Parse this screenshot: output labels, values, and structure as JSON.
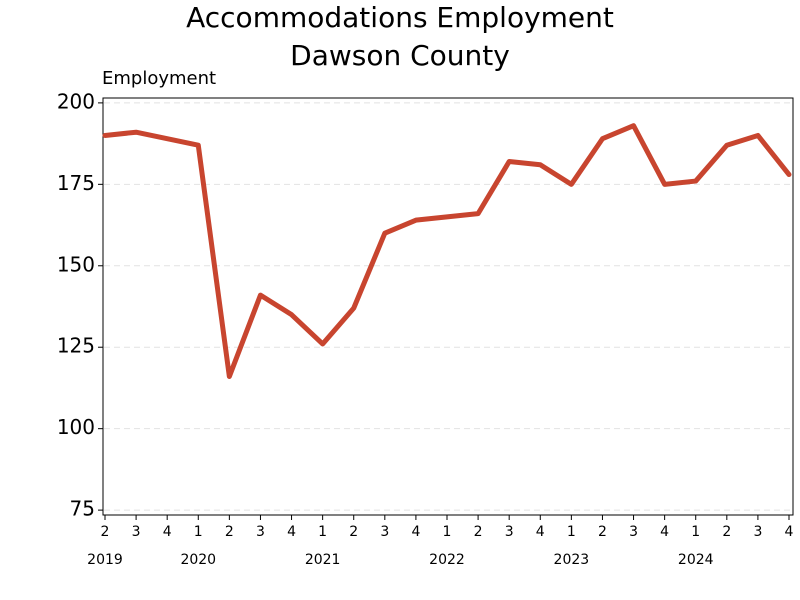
{
  "chart_data": {
    "type": "line",
    "title": "Accommodations Employment",
    "subtitle": "Dawson County",
    "y_label": "Employment",
    "categories": [
      "2",
      "3",
      "4",
      "1",
      "2",
      "3",
      "4",
      "1",
      "2",
      "3",
      "4",
      "1",
      "2",
      "3",
      "4",
      "1",
      "2",
      "3",
      "4",
      "1",
      "2",
      "3",
      "4"
    ],
    "year_categories": [
      "2019",
      null,
      null,
      "2020",
      null,
      null,
      null,
      "2021",
      null,
      null,
      null,
      "2022",
      null,
      null,
      null,
      "2023",
      null,
      null,
      null,
      "2024",
      null,
      null,
      null
    ],
    "series": [
      {
        "name": "Employment",
        "color": "#c8452f",
        "values": [
          190,
          191,
          189,
          187,
          116,
          141,
          135,
          126,
          137,
          160,
          164,
          165,
          166,
          182,
          181,
          175,
          189,
          193,
          175,
          176,
          187,
          190,
          178
        ]
      }
    ],
    "ylim": [
      73.5,
      201.5
    ],
    "yticks": [
      75,
      100,
      125,
      150,
      175,
      200
    ],
    "grid": true
  }
}
